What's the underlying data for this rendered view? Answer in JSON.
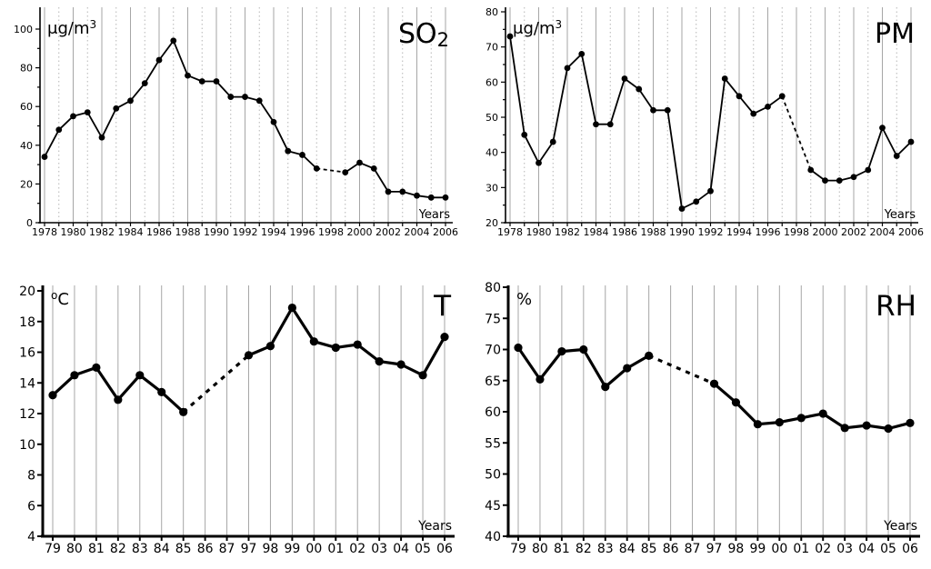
{
  "figure": {
    "background": "#ffffff",
    "line_color": "#000000",
    "marker_color": "#000000",
    "grid_color_solid": "#a6a6a6",
    "grid_color_dotted": "#b6b6b6",
    "years_axis_label": "Years"
  },
  "chart_data": [
    {
      "id": "so2",
      "type": "line",
      "title_parts": [
        {
          "t": "SO"
        },
        {
          "t": "2",
          "sub": true
        }
      ],
      "unit_parts": [
        {
          "t": "μg/m"
        },
        {
          "t": "3",
          "sup": true
        }
      ],
      "xlabel": "Years",
      "x_categories": [
        "1978",
        "1979",
        "1980",
        "1981",
        "1982",
        "1983",
        "1984",
        "1985",
        "1986",
        "1987",
        "1988",
        "1989",
        "1990",
        "1991",
        "1992",
        "1993",
        "1994",
        "1995",
        "1996",
        "1997",
        "1998",
        "1999",
        "2000",
        "2001",
        "2002",
        "2003",
        "2004",
        "2005",
        "2006"
      ],
      "x_label_every": 2,
      "grid_all_solid": false,
      "y_min": 0,
      "y_max": 100,
      "y_label_step": 20,
      "y_minor_step": 10,
      "y_tick_labels": [
        "0",
        "20",
        "40",
        "60",
        "80",
        "100"
      ],
      "ylim": [
        0,
        110
      ],
      "legend": "none",
      "missing_segment_style": "dashed",
      "values": [
        34,
        48,
        55,
        57,
        44,
        59,
        63,
        72,
        84,
        94,
        76,
        73,
        73,
        65,
        65,
        63,
        52,
        37,
        35,
        28,
        null,
        26,
        31,
        28,
        16,
        16,
        14,
        13,
        13
      ]
    },
    {
      "id": "pm",
      "type": "line",
      "title_parts": [
        {
          "t": "PM"
        }
      ],
      "unit_parts": [
        {
          "t": "μg/m"
        },
        {
          "t": "3",
          "sup": true
        }
      ],
      "xlabel": "Years",
      "x_categories": [
        "1978",
        "1979",
        "1980",
        "1981",
        "1982",
        "1983",
        "1984",
        "1985",
        "1986",
        "1987",
        "1988",
        "1989",
        "1990",
        "1991",
        "1992",
        "1993",
        "1994",
        "1995",
        "1996",
        "1997",
        "1998",
        "1999",
        "2000",
        "2001",
        "2002",
        "2003",
        "2004",
        "2005",
        "2006"
      ],
      "x_label_every": 2,
      "grid_all_solid": false,
      "y_min": 20,
      "y_max": 80,
      "y_label_step": 10,
      "y_minor_step": 5,
      "y_tick_labels": [
        "20",
        "30",
        "40",
        "50",
        "60",
        "70",
        "80"
      ],
      "ylim": [
        20,
        80
      ],
      "legend": "none",
      "missing_segment_style": "dashed",
      "values": [
        73,
        45,
        37,
        43,
        64,
        68,
        48,
        48,
        61,
        58,
        52,
        52,
        24,
        26,
        29,
        61,
        56,
        51,
        53,
        56,
        null,
        35,
        32,
        32,
        33,
        35,
        47,
        39,
        43
      ]
    },
    {
      "id": "t",
      "type": "line",
      "title_parts": [
        {
          "t": "T"
        }
      ],
      "unit_parts": [
        {
          "t": "o",
          "sup": true
        },
        {
          "t": "C"
        }
      ],
      "xlabel": "Years",
      "x_categories": [
        "79",
        "80",
        "81",
        "82",
        "83",
        "84",
        "85",
        "86",
        "87",
        "97",
        "98",
        "99",
        "00",
        "01",
        "02",
        "03",
        "04",
        "05",
        "06"
      ],
      "x_label_every": 1,
      "grid_all_solid": true,
      "y_min": 4,
      "y_max": 20,
      "y_label_step": 2,
      "y_minor_step": 2,
      "y_tick_labels": [
        "4",
        "6",
        "8",
        "10",
        "12",
        "14",
        "16",
        "18",
        "20"
      ],
      "ylim": [
        4,
        20
      ],
      "legend": "none",
      "missing_segment_style": "dashed",
      "values": [
        13.2,
        14.5,
        15.0,
        12.9,
        14.5,
        13.4,
        12.1,
        null,
        null,
        15.8,
        16.4,
        18.9,
        16.7,
        16.3,
        16.5,
        15.4,
        15.2,
        14.5,
        17.0
      ]
    },
    {
      "id": "rh",
      "type": "line",
      "title_parts": [
        {
          "t": "RH"
        }
      ],
      "unit_parts": [
        {
          "t": "%"
        }
      ],
      "xlabel": "Years",
      "x_categories": [
        "79",
        "80",
        "81",
        "82",
        "83",
        "84",
        "85",
        "86",
        "87",
        "97",
        "98",
        "99",
        "00",
        "01",
        "02",
        "03",
        "04",
        "05",
        "06"
      ],
      "x_label_every": 1,
      "grid_all_solid": true,
      "y_min": 40,
      "y_max": 80,
      "y_label_step": 5,
      "y_minor_step": 5,
      "y_tick_labels": [
        "40",
        "45",
        "50",
        "55",
        "60",
        "65",
        "70",
        "75",
        "80"
      ],
      "ylim": [
        40,
        80
      ],
      "legend": "none",
      "missing_segment_style": "dashed",
      "values": [
        70.3,
        65.2,
        69.7,
        70.0,
        64.0,
        67.0,
        69.0,
        null,
        null,
        64.5,
        61.5,
        58.0,
        58.3,
        59.0,
        59.7,
        57.4,
        57.8,
        57.3,
        58.2
      ]
    }
  ]
}
